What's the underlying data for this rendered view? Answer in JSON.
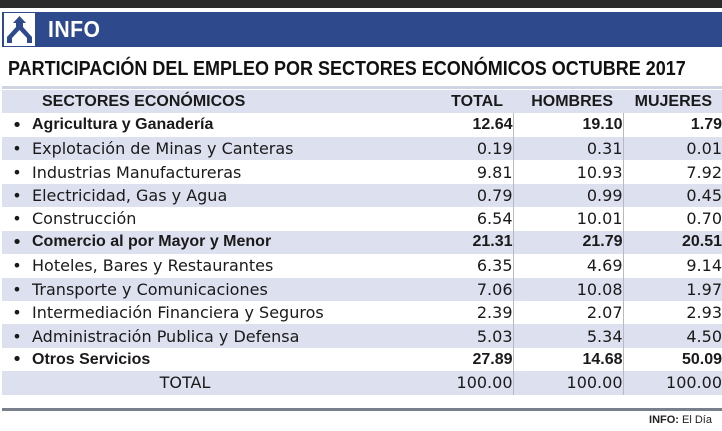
{
  "header": {
    "logo_text": "INFO",
    "logo_icon": "el-dia-tripod-logo-icon",
    "brand_color": "#2f4a8c"
  },
  "title": "PARTICIPACIÓN DEL EMPLEO POR SECTORES ECONÓMICOS OCTUBRE 2017",
  "chart_data": {
    "type": "table",
    "title": "PARTICIPACIÓN DEL EMPLEO POR SECTORES ECONÓMICOS OCTUBRE 2017",
    "columns": [
      "SECTORES ECONÓMICOS",
      "TOTAL",
      "HOMBRES",
      "MUJERES"
    ],
    "rows": [
      {
        "sector": "Agricultura y Ganadería",
        "total": "12.64",
        "men": "19.10",
        "women": "1.79",
        "bold": true
      },
      {
        "sector": "Explotación de Minas y Canteras",
        "total": "0.19",
        "men": "0.31",
        "women": "0.01",
        "bold": false
      },
      {
        "sector": "Industrias Manufactureras",
        "total": "9.81",
        "men": "10.93",
        "women": "7.92",
        "bold": false
      },
      {
        "sector": "Electricidad, Gas y Agua",
        "total": "0.79",
        "men": "0.99",
        "women": "0.45",
        "bold": false
      },
      {
        "sector": "Construcción",
        "total": "6.54",
        "men": "10.01",
        "women": "0.70",
        "bold": false
      },
      {
        "sector": "Comercio al por Mayor y Menor",
        "total": "21.31",
        "men": "21.79",
        "women": "20.51",
        "bold": true
      },
      {
        "sector": "Hoteles, Bares y Restaurantes",
        "total": "6.35",
        "men": "4.69",
        "women": "9.14",
        "bold": false
      },
      {
        "sector": "Transporte y Comunicaciones",
        "total": "7.06",
        "men": "10.08",
        "women": "1.97",
        "bold": false
      },
      {
        "sector": "Intermediación Financiera y Seguros",
        "total": "2.39",
        "men": "2.07",
        "women": "2.93",
        "bold": false
      },
      {
        "sector": "Administración Publica y Defensa",
        "total": "5.03",
        "men": "5.34",
        "women": "4.50",
        "bold": false
      },
      {
        "sector": "Otros Servicios",
        "total": "27.89",
        "men": "14.68",
        "women": "50.09",
        "bold": true
      }
    ],
    "total_row": {
      "label": "TOTAL",
      "total": "100.00",
      "men": "100.00",
      "women": "100.00"
    }
  },
  "source": {
    "label": "INFO:",
    "value": "El Día"
  },
  "colors": {
    "row_shade": "#dde0ee",
    "header_bar": "#2f4a8c"
  }
}
